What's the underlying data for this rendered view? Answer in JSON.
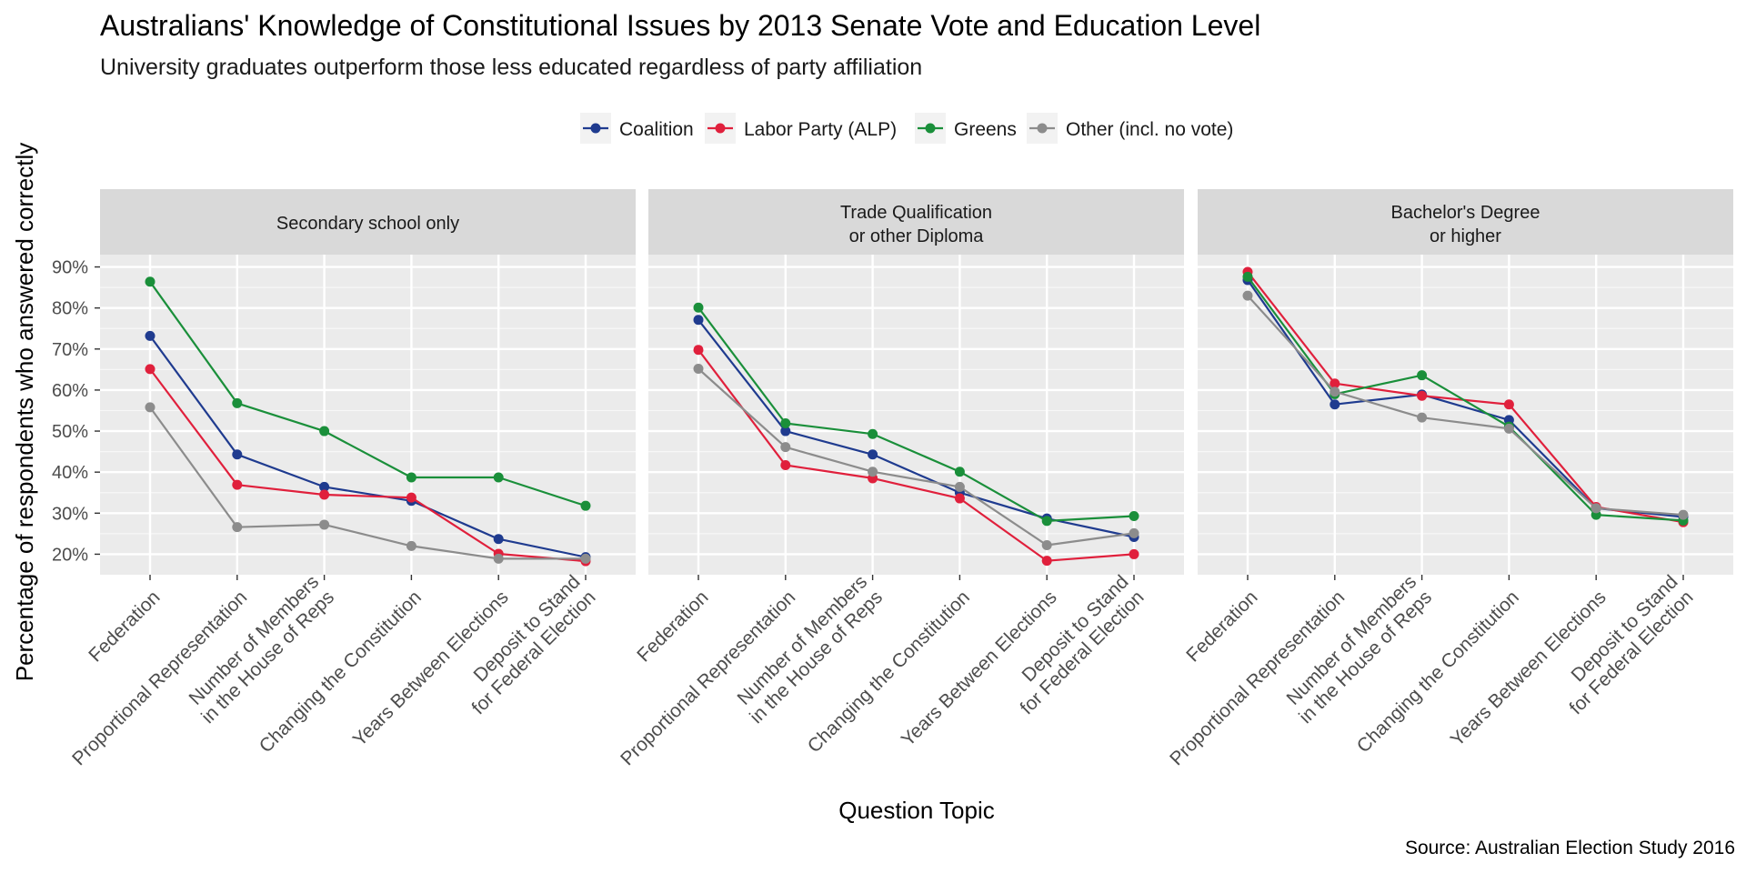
{
  "chart_data": {
    "type": "line",
    "title": "Australians' Knowledge of Constitutional Issues by 2013 Senate Vote and Education Level",
    "subtitle": "University graduates outperform those less educated regardless of party affiliation",
    "xlabel": "Question Topic",
    "ylabel": "Percentage of respondents who answered correctly",
    "caption": "Source: Australian Election Study 2016",
    "ylim": [
      15,
      93
    ],
    "yticks": [
      20,
      30,
      40,
      50,
      60,
      70,
      80,
      90
    ],
    "ytick_labels": [
      "20%",
      "30%",
      "40%",
      "50%",
      "60%",
      "70%",
      "80%",
      "90%"
    ],
    "legend_position": "top",
    "grid": true,
    "categories": [
      [
        "Federation"
      ],
      [
        "Proportional Representation"
      ],
      [
        "Number of Members",
        "in the House of Reps"
      ],
      [
        "Changing the Constitution"
      ],
      [
        "Years Between Elections"
      ],
      [
        "Deposit to Stand",
        "for Federal Election"
      ]
    ],
    "series_styles": [
      {
        "name": "Coalition",
        "color": "#1f3b8f"
      },
      {
        "name": "Labor Party (ALP)",
        "color": "#e0203c"
      },
      {
        "name": "Greens",
        "color": "#1a8f3a"
      },
      {
        "name": "Other (incl. no vote)",
        "color": "#8c8c8c"
      }
    ],
    "panels": [
      {
        "facet": [
          "Secondary school only"
        ],
        "series": [
          {
            "name": "Coalition",
            "values": [
              73.2,
              44.3,
              36.4,
              33.0,
              23.7,
              19.3
            ]
          },
          {
            "name": "Labor Party (ALP)",
            "values": [
              65.1,
              36.9,
              34.5,
              33.8,
              20.1,
              18.3
            ]
          },
          {
            "name": "Greens",
            "values": [
              86.4,
              56.8,
              50.0,
              38.7,
              38.7,
              31.8
            ]
          },
          {
            "name": "Other (incl. no vote)",
            "values": [
              55.8,
              26.6,
              27.2,
              22.0,
              18.9,
              18.9
            ]
          }
        ]
      },
      {
        "facet": [
          "Trade Qualification",
          "or other Diploma"
        ],
        "series": [
          {
            "name": "Coalition",
            "values": [
              77.1,
              50.0,
              44.3,
              35.0,
              28.7,
              24.2
            ]
          },
          {
            "name": "Labor Party (ALP)",
            "values": [
              69.8,
              41.7,
              38.5,
              33.6,
              18.4,
              20.0
            ]
          },
          {
            "name": "Greens",
            "values": [
              80.1,
              51.9,
              49.3,
              40.1,
              28.1,
              29.3
            ]
          },
          {
            "name": "Other (incl. no vote)",
            "values": [
              65.2,
              46.1,
              40.1,
              36.4,
              22.2,
              25.1
            ]
          }
        ]
      },
      {
        "facet": [
          "Bachelor's Degree",
          "or higher"
        ],
        "series": [
          {
            "name": "Coalition",
            "values": [
              86.8,
              56.5,
              58.9,
              52.7,
              31.2,
              29.1
            ]
          },
          {
            "name": "Labor Party (ALP)",
            "values": [
              88.8,
              61.6,
              58.6,
              56.5,
              31.5,
              27.8
            ]
          },
          {
            "name": "Greens",
            "values": [
              87.6,
              59.0,
              63.6,
              51.1,
              29.6,
              28.2
            ]
          },
          {
            "name": "Other (incl. no vote)",
            "values": [
              83.0,
              59.6,
              53.3,
              50.6,
              31.2,
              29.6
            ]
          }
        ]
      }
    ]
  }
}
